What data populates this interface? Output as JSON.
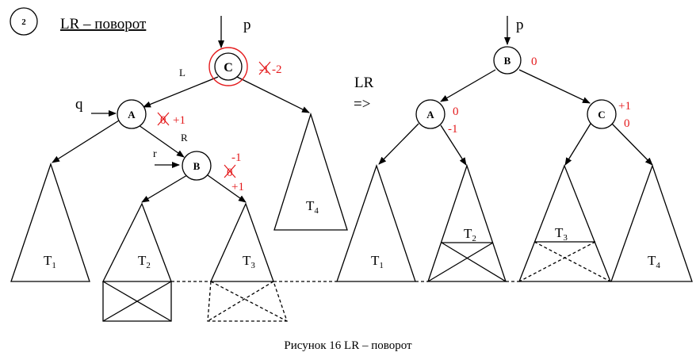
{
  "header": {
    "step_number": "2",
    "title": "LR – поворот"
  },
  "pointers": {
    "p": "p",
    "q": "q",
    "r": "r",
    "p_right": "p"
  },
  "edge_labels": {
    "left": "L",
    "right": "R"
  },
  "transform": {
    "label": "LR",
    "arrow": "=>"
  },
  "left_tree": {
    "nodes": {
      "c": "C",
      "a": "A",
      "b": "B"
    },
    "balances": {
      "c_old": "-1",
      "c_new": "-2",
      "a_old": "0",
      "a_new": "+1",
      "b_old": "0",
      "b_top": "-1",
      "b_bottom": "+1"
    },
    "subtrees": {
      "t1": "T",
      "t2": "T",
      "t3": "T",
      "t4": "T"
    },
    "subscripts": {
      "t1": "1",
      "t2": "2",
      "t3": "3",
      "t4": "4"
    }
  },
  "right_tree": {
    "nodes": {
      "b": "B",
      "a": "A",
      "c": "C"
    },
    "balances": {
      "b": "0",
      "a_top": "0",
      "a_bottom": "-1",
      "c_top": "+1",
      "c_bottom": "0"
    },
    "subtrees": {
      "t1": "T",
      "t2": "T",
      "t3": "T",
      "t4": "T"
    },
    "subscripts": {
      "t1": "1",
      "t2": "2",
      "t3": "3",
      "t4": "4"
    }
  },
  "caption": "Рисунок 16 LR – поворот",
  "colors": {
    "annotation": "#e41a1c",
    "lines": "#000000"
  }
}
